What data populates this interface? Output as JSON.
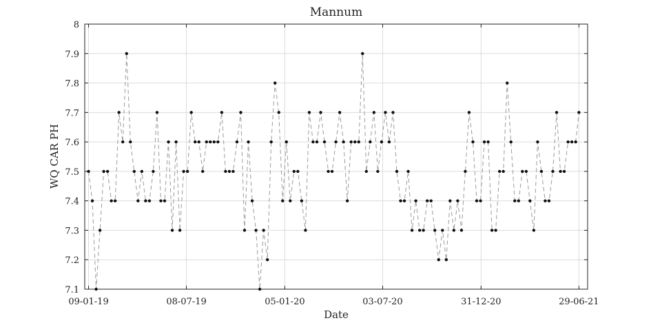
{
  "chart_data": {
    "type": "line",
    "title": "Mannum",
    "xlabel": "Date",
    "ylabel": "WQ CAR PH",
    "xlim": [
      "2019-01-02",
      "2021-07-15"
    ],
    "ylim": [
      7.1,
      8.0
    ],
    "grid": true,
    "x_ticks": [
      {
        "date": "2019-01-09",
        "label": "09-01-19"
      },
      {
        "date": "2019-07-08",
        "label": "08-07-19"
      },
      {
        "date": "2020-01-05",
        "label": "05-01-20"
      },
      {
        "date": "2020-07-03",
        "label": "03-07-20"
      },
      {
        "date": "2020-12-31",
        "label": "31-12-20"
      },
      {
        "date": "2021-06-29",
        "label": "29-06-21"
      }
    ],
    "y_ticks": [
      7.1,
      7.2,
      7.3,
      7.4,
      7.5,
      7.6,
      7.7,
      7.8,
      7.9,
      8
    ],
    "series": [
      {
        "marker": "dot",
        "line_style": "dashed",
        "line_color": "#9a9a9a",
        "marker_color": "#111111",
        "x": [
          "2019-01-09",
          "2019-01-16",
          "2019-01-23",
          "2019-01-30",
          "2019-02-06",
          "2019-02-13",
          "2019-02-20",
          "2019-02-27",
          "2019-03-06",
          "2019-03-13",
          "2019-03-20",
          "2019-03-27",
          "2019-04-03",
          "2019-04-10",
          "2019-04-17",
          "2019-04-24",
          "2019-05-01",
          "2019-05-08",
          "2019-05-15",
          "2019-05-22",
          "2019-05-29",
          "2019-06-05",
          "2019-06-12",
          "2019-06-19",
          "2019-06-26",
          "2019-07-03",
          "2019-07-10",
          "2019-07-17",
          "2019-07-24",
          "2019-07-31",
          "2019-08-07",
          "2019-08-14",
          "2019-08-21",
          "2019-08-28",
          "2019-09-04",
          "2019-09-11",
          "2019-09-18",
          "2019-09-25",
          "2019-10-02",
          "2019-10-09",
          "2019-10-16",
          "2019-10-23",
          "2019-10-30",
          "2019-11-06",
          "2019-11-13",
          "2019-11-20",
          "2019-11-27",
          "2019-12-04",
          "2019-12-11",
          "2019-12-18",
          "2019-12-25",
          "2020-01-01",
          "2020-01-08",
          "2020-01-15",
          "2020-01-22",
          "2020-01-29",
          "2020-02-05",
          "2020-02-12",
          "2020-02-19",
          "2020-02-26",
          "2020-03-04",
          "2020-03-11",
          "2020-03-18",
          "2020-03-25",
          "2020-04-01",
          "2020-04-08",
          "2020-04-15",
          "2020-04-22",
          "2020-04-29",
          "2020-05-06",
          "2020-05-13",
          "2020-05-20",
          "2020-05-27",
          "2020-06-03",
          "2020-06-10",
          "2020-06-17",
          "2020-06-24",
          "2020-07-01",
          "2020-07-08",
          "2020-07-15",
          "2020-07-22",
          "2020-07-29",
          "2020-08-05",
          "2020-08-12",
          "2020-08-19",
          "2020-08-26",
          "2020-09-02",
          "2020-09-09",
          "2020-09-16",
          "2020-09-23",
          "2020-09-30",
          "2020-10-07",
          "2020-10-14",
          "2020-10-21",
          "2020-10-28",
          "2020-11-04",
          "2020-11-11",
          "2020-11-18",
          "2020-11-25",
          "2020-12-02",
          "2020-12-09",
          "2020-12-16",
          "2020-12-23",
          "2020-12-30",
          "2021-01-06",
          "2021-01-13",
          "2021-01-20",
          "2021-01-27",
          "2021-02-03",
          "2021-02-10",
          "2021-02-17",
          "2021-02-24",
          "2021-03-03",
          "2021-03-10",
          "2021-03-17",
          "2021-03-24",
          "2021-03-31",
          "2021-04-07",
          "2021-04-14",
          "2021-04-21",
          "2021-04-28",
          "2021-05-05",
          "2021-05-12",
          "2021-05-19",
          "2021-05-26",
          "2021-06-02",
          "2021-06-09",
          "2021-06-16",
          "2021-06-23",
          "2021-06-29"
        ],
        "y": [
          7.5,
          7.4,
          7.1,
          7.3,
          7.5,
          7.5,
          7.4,
          7.4,
          7.7,
          7.6,
          7.9,
          7.6,
          7.5,
          7.4,
          7.5,
          7.4,
          7.4,
          7.5,
          7.7,
          7.4,
          7.4,
          7.6,
          7.3,
          7.6,
          7.3,
          7.5,
          7.5,
          7.7,
          7.6,
          7.6,
          7.5,
          7.6,
          7.6,
          7.6,
          7.6,
          7.7,
          7.5,
          7.5,
          7.5,
          7.6,
          7.7,
          7.3,
          7.6,
          7.4,
          7.3,
          7.1,
          7.3,
          7.2,
          7.6,
          7.8,
          7.7,
          7.4,
          7.6,
          7.4,
          7.5,
          7.5,
          7.4,
          7.3,
          7.7,
          7.6,
          7.6,
          7.7,
          7.6,
          7.5,
          7.5,
          7.6,
          7.7,
          7.6,
          7.4,
          7.6,
          7.6,
          7.6,
          7.9,
          7.5,
          7.6,
          7.7,
          7.5,
          7.6,
          7.7,
          7.6,
          7.7,
          7.5,
          7.4,
          7.4,
          7.5,
          7.3,
          7.4,
          7.3,
          7.3,
          7.4,
          7.4,
          7.3,
          7.2,
          7.3,
          7.2,
          7.4,
          7.3,
          7.4,
          7.3,
          7.5,
          7.7,
          7.6,
          7.4,
          7.4,
          7.6,
          7.6,
          7.3,
          7.3,
          7.5,
          7.5,
          7.8,
          7.6,
          7.4,
          7.4,
          7.5,
          7.5,
          7.4,
          7.3,
          7.6,
          7.5,
          7.4,
          7.4,
          7.5,
          7.7,
          7.5,
          7.5,
          7.6,
          7.6,
          7.6,
          7.7
        ]
      }
    ]
  }
}
